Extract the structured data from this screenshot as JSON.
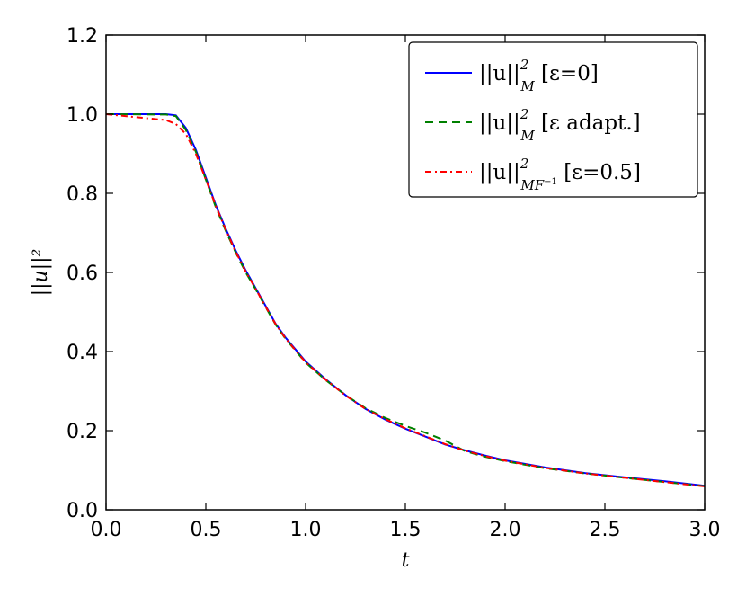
{
  "chart_data": {
    "type": "line",
    "xlabel": "t",
    "ylabel": "||u||²",
    "xlim": [
      0.0,
      3.0
    ],
    "ylim": [
      0.0,
      1.2
    ],
    "xticks": [
      "0.0",
      "0.5",
      "1.0",
      "1.5",
      "2.0",
      "2.5",
      "3.0"
    ],
    "yticks": [
      "0.0",
      "0.2",
      "0.4",
      "0.6",
      "0.8",
      "1.0",
      "1.2"
    ],
    "grid": false,
    "legend_position": "top-right",
    "series": [
      {
        "name": "||u||²_M [ε=0]",
        "legend": {
          "main": "||u||",
          "sup": "2",
          "sub": "M",
          "tail": "  [ε=0]"
        },
        "color": "#0000ff",
        "style": "solid",
        "x": [
          0.0,
          0.3,
          0.35,
          0.4,
          0.45,
          0.5,
          0.55,
          0.6,
          0.65,
          0.7,
          0.75,
          0.8,
          0.85,
          0.9,
          0.95,
          1.0,
          1.1,
          1.2,
          1.3,
          1.4,
          1.5,
          1.6,
          1.7,
          1.8,
          1.9,
          2.0,
          2.2,
          2.4,
          2.6,
          2.8,
          3.0
        ],
        "y": [
          1.0,
          1.0,
          0.997,
          0.965,
          0.91,
          0.84,
          0.77,
          0.71,
          0.655,
          0.605,
          0.56,
          0.515,
          0.47,
          0.435,
          0.405,
          0.375,
          0.33,
          0.29,
          0.255,
          0.228,
          0.205,
          0.185,
          0.165,
          0.15,
          0.137,
          0.125,
          0.107,
          0.093,
          0.082,
          0.072,
          0.061
        ]
      },
      {
        "name": "||u||²_M [ε adapt.]",
        "legend": {
          "main": "||u||",
          "sup": "2",
          "sub": "M",
          "tail": "  [ε adapt.]"
        },
        "color": "#008000",
        "style": "dashed",
        "x": [
          0.0,
          0.3,
          0.35,
          0.4,
          0.45,
          0.5,
          0.55,
          0.6,
          0.65,
          0.7,
          0.75,
          0.8,
          0.85,
          0.9,
          0.95,
          1.0,
          1.1,
          1.2,
          1.3,
          1.4,
          1.5,
          1.6,
          1.7,
          1.8,
          1.9,
          2.0,
          2.2,
          2.4,
          2.6,
          2.8,
          3.0
        ],
        "y": [
          1.0,
          0.999,
          0.995,
          0.96,
          0.905,
          0.835,
          0.765,
          0.705,
          0.65,
          0.6,
          0.557,
          0.512,
          0.468,
          0.432,
          0.402,
          0.372,
          0.328,
          0.29,
          0.257,
          0.232,
          0.212,
          0.195,
          0.175,
          0.148,
          0.134,
          0.123,
          0.105,
          0.092,
          0.081,
          0.07,
          0.06
        ]
      },
      {
        "name": "||u||²_MF⁻¹ [ε=0.5]",
        "legend": {
          "main": "||u||",
          "sup": "2",
          "sub": "MF",
          "subsup": "−1",
          "tail": " [ε=0.5]"
        },
        "color": "#ff0000",
        "style": "dashdot",
        "x": [
          0.0,
          0.3,
          0.35,
          0.4,
          0.45,
          0.5,
          0.55,
          0.6,
          0.65,
          0.7,
          0.75,
          0.8,
          0.85,
          0.9,
          0.95,
          1.0,
          1.1,
          1.2,
          1.3,
          1.4,
          1.5,
          1.6,
          1.7,
          1.8,
          1.9,
          2.0,
          2.2,
          2.4,
          2.6,
          2.8,
          3.0
        ],
        "y": [
          1.0,
          0.985,
          0.975,
          0.95,
          0.9,
          0.835,
          0.768,
          0.708,
          0.652,
          0.602,
          0.558,
          0.513,
          0.469,
          0.433,
          0.403,
          0.373,
          0.329,
          0.289,
          0.255,
          0.229,
          0.206,
          0.186,
          0.166,
          0.149,
          0.136,
          0.124,
          0.106,
          0.092,
          0.081,
          0.07,
          0.059
        ]
      }
    ]
  }
}
